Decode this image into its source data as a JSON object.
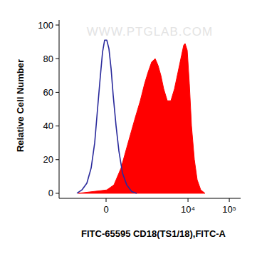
{
  "chart_data": {
    "type": "histogram",
    "x_label": "FITC-65595 CD18(TS1/18),FITC-A",
    "y_label": "Relative Cell Number",
    "annotations": [
      "WWW.PTGLAB.COM"
    ],
    "xlim": [
      -1420,
      188000
    ],
    "xticks": [
      {
        "value": 0,
        "label": "0"
      },
      {
        "value": 10000,
        "label": "10⁴"
      },
      {
        "value": 100000,
        "label": "10⁵"
      }
    ],
    "ylim": [
      -3,
      103
    ],
    "yticks": [
      0,
      20,
      40,
      60,
      80,
      100
    ],
    "grid": false,
    "series": [
      {
        "type": "line",
        "color": "#2a2a9c",
        "x": [
          -508,
          -373,
          -268,
          -194,
          -141,
          -103,
          -67,
          -41,
          -17,
          8,
          33,
          59,
          85,
          122,
          162,
          218,
          296,
          410,
          553
        ],
        "values": [
          0,
          2,
          6,
          15,
          30,
          50,
          70,
          84,
          91,
          91,
          86,
          74,
          58,
          40,
          25,
          12,
          5,
          1,
          0
        ]
      },
      {
        "type": "area",
        "color": "#ff0000",
        "x": [
          -466,
          -172,
          8,
          94,
          194,
          324,
          508,
          684,
          874,
          1071,
          1310,
          1602,
          1878,
          2205,
          2583,
          3153,
          3846,
          4692,
          5724,
          6978,
          7862,
          8507,
          9589,
          10795,
          12168,
          14269,
          16702,
          20384,
          25854
        ],
        "values": [
          0,
          1,
          2,
          5,
          15,
          30,
          45,
          55,
          65,
          72,
          78,
          80,
          76,
          70,
          62,
          55,
          55,
          62,
          72,
          82,
          88,
          89,
          85,
          65,
          40,
          20,
          8,
          2,
          0
        ]
      }
    ]
  }
}
